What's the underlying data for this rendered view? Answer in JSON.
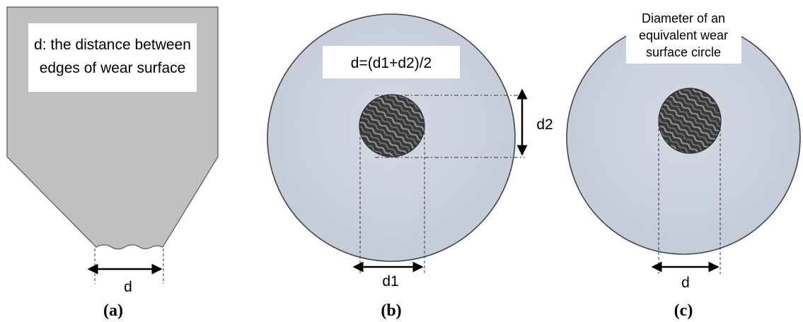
{
  "panels": [
    {
      "id": "a",
      "label": "(a)",
      "note_lines": [
        "d: the distance between",
        "edges of wear surface"
      ],
      "dimension": "d"
    },
    {
      "id": "b",
      "label": "(b)",
      "note_lines": [
        "d=(d1+d2)/2"
      ],
      "dim_horizontal": "d1",
      "dim_vertical": "d2"
    },
    {
      "id": "c",
      "label": "(c)",
      "note_lines": [
        "Diameter of an",
        "equivalent wear",
        "surface circle"
      ],
      "dimension": "d"
    }
  ],
  "colors": {
    "tool_fill": "#c0c0c0",
    "disk_fill": "#cdd3df",
    "outline": "#555555",
    "wear_dark": "#2a2a2a"
  }
}
